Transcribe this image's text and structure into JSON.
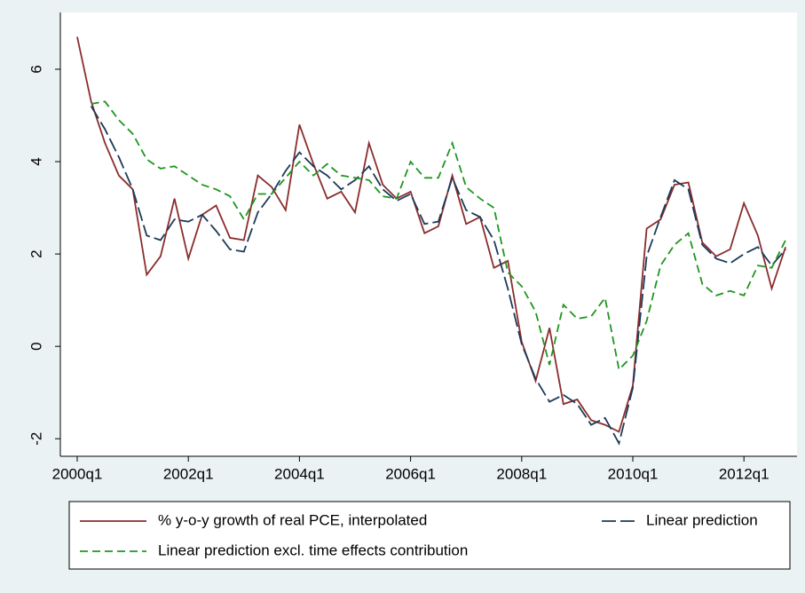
{
  "chart_data": {
    "type": "line",
    "categories": [
      "2000q1",
      null,
      null,
      null,
      null,
      null,
      null,
      null,
      "2002q1",
      null,
      null,
      null,
      null,
      null,
      null,
      null,
      "2004q1",
      null,
      null,
      null,
      null,
      null,
      null,
      null,
      "2006q1",
      null,
      null,
      null,
      null,
      null,
      null,
      null,
      "2008q1",
      null,
      null,
      null,
      null,
      null,
      null,
      null,
      "2010q1",
      null,
      null,
      null,
      null,
      null,
      null,
      null,
      "2012q1",
      null,
      null,
      null
    ],
    "series": [
      {
        "name": "% y-o-y growth of real PCE, interpolated",
        "color": "#8b2c2c",
        "dash": "none",
        "values": [
          6.7,
          5.3,
          4.4,
          3.7,
          3.4,
          1.55,
          1.95,
          3.2,
          1.9,
          2.85,
          3.05,
          2.35,
          2.3,
          3.7,
          3.45,
          2.95,
          4.8,
          3.95,
          3.2,
          3.35,
          2.9,
          4.4,
          3.5,
          3.2,
          3.35,
          2.45,
          2.6,
          3.7,
          2.65,
          2.8,
          1.7,
          1.85,
          0.1,
          -0.75,
          0.4,
          -1.25,
          -1.15,
          -1.6,
          -1.7,
          -1.85,
          -0.85,
          2.55,
          2.75,
          3.5,
          3.55,
          2.25,
          1.95,
          2.1,
          3.1,
          2.4,
          1.25,
          2.15
        ]
      },
      {
        "name": "Linear prediction",
        "color": "#1b3a5a",
        "dash": "16,5",
        "values": [
          null,
          5.2,
          4.7,
          4.1,
          3.4,
          2.4,
          2.3,
          2.75,
          2.7,
          2.85,
          2.5,
          2.1,
          2.05,
          2.9,
          3.3,
          3.8,
          4.2,
          3.9,
          3.7,
          3.4,
          3.6,
          3.9,
          3.4,
          3.15,
          3.3,
          2.65,
          2.7,
          3.65,
          2.95,
          2.8,
          2.3,
          1.25,
          0.05,
          -0.7,
          -1.2,
          -1.05,
          -1.25,
          -1.7,
          -1.55,
          -2.1,
          -0.9,
          1.95,
          2.8,
          3.6,
          3.4,
          2.2,
          1.9,
          1.8,
          2.0,
          2.15,
          1.75,
          2.1
        ]
      },
      {
        "name": "Linear prediction excl. time effects contribution",
        "color": "#1e961e",
        "dash": "9,5",
        "values": [
          null,
          5.25,
          5.3,
          4.9,
          4.6,
          4.05,
          3.85,
          3.9,
          3.7,
          3.5,
          3.4,
          3.25,
          2.75,
          3.3,
          3.3,
          3.65,
          4.0,
          3.7,
          3.95,
          3.7,
          3.65,
          3.6,
          3.25,
          3.2,
          4.0,
          3.65,
          3.65,
          4.4,
          3.45,
          3.2,
          3.0,
          1.6,
          1.3,
          0.75,
          -0.4,
          0.9,
          0.6,
          0.65,
          1.05,
          -0.5,
          -0.2,
          0.55,
          1.75,
          2.2,
          2.45,
          1.35,
          1.1,
          1.2,
          1.1,
          1.75,
          1.7,
          2.3
        ]
      }
    ],
    "ylim": [
      -2.38,
      7.23
    ],
    "yticks": [
      -2,
      0,
      2,
      4,
      6
    ],
    "grid": false,
    "legend_position": "bottom"
  }
}
